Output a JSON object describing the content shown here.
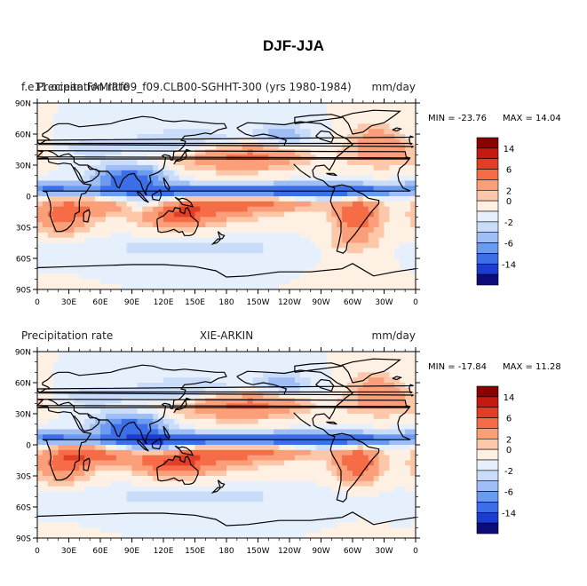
{
  "figure": {
    "title": "DJF-JJA"
  },
  "colors": {
    "levels": [
      "#0d0d7a",
      "#1a3cd0",
      "#3c6ee8",
      "#6b9bf0",
      "#9fbef5",
      "#c9dcfa",
      "#e6f0fc",
      "#fff0e4",
      "#fcc8a9",
      "#fb9f7b",
      "#f56c47",
      "#e33d25",
      "#c51a10",
      "#8b0000"
    ],
    "coast": "#000000",
    "frame": "#000000"
  },
  "colorbar": {
    "labels": [
      "14",
      "6",
      "2",
      "0",
      "-2",
      "-6",
      "-14"
    ]
  },
  "axes": {
    "lat_labels": [
      "90N",
      "60N",
      "30N",
      "0",
      "30S",
      "60S",
      "90S"
    ],
    "lon_labels": [
      "0",
      "30E",
      "60E",
      "90E",
      "120E",
      "150E",
      "180",
      "150W",
      "120W",
      "90W",
      "60W",
      "30W",
      "0"
    ]
  },
  "panels": [
    {
      "left_label": "f.e11.ocean.FAMIP.f09_f09.CLB00-SGHHT-300 (yrs 1980-1984)",
      "left_label_overlay": "Precipitation rate",
      "center_label": "",
      "right_label": "mm/day",
      "min_text": "MIN = -23.76",
      "max_text": "MAX =  14.04"
    },
    {
      "left_label": "Precipitation rate",
      "center_label": "XIE-ARKIN",
      "right_label": "mm/day",
      "min_text": "MIN = -17.84",
      "max_text": "MAX =  11.28"
    }
  ]
}
